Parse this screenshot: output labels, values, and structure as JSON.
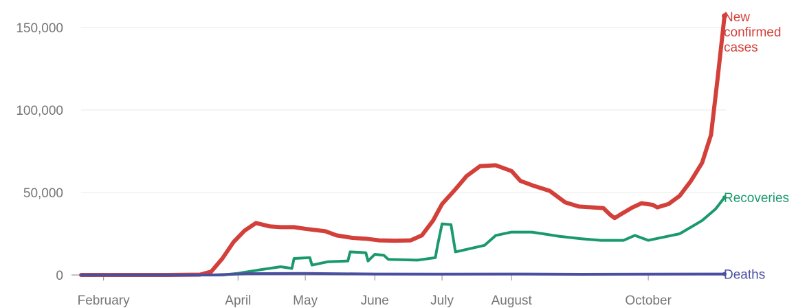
{
  "chart_data": {
    "type": "line",
    "title": "",
    "xlabel": "",
    "ylabel": "",
    "ylim": [
      0,
      160000
    ],
    "grid": true,
    "y_ticks": [
      {
        "value": 0,
        "label": "0"
      },
      {
        "value": 50000,
        "label": "50,000"
      },
      {
        "value": 100000,
        "label": "100,000"
      },
      {
        "value": 150000,
        "label": "150,000"
      }
    ],
    "x_ticks": [
      {
        "date": "2020-02-01",
        "label": "February"
      },
      {
        "date": "2020-04-01",
        "label": "April"
      },
      {
        "date": "2020-05-01",
        "label": "May"
      },
      {
        "date": "2020-06-01",
        "label": "June"
      },
      {
        "date": "2020-07-01",
        "label": "July"
      },
      {
        "date": "2020-08-01",
        "label": "August"
      },
      {
        "date": "2020-10-01",
        "label": "October"
      }
    ],
    "xlim": [
      "2020-01-22",
      "2020-11-04"
    ],
    "series": [
      {
        "name": "New confirmed cases",
        "label_lines": [
          "New",
          "confirmed",
          "cases"
        ],
        "color": "#d3403a",
        "points": [
          [
            "2020-01-22",
            0
          ],
          [
            "2020-03-01",
            0
          ],
          [
            "2020-03-15",
            200
          ],
          [
            "2020-03-20",
            2000
          ],
          [
            "2020-03-25",
            10000
          ],
          [
            "2020-03-30",
            20000
          ],
          [
            "2020-04-04",
            27000
          ],
          [
            "2020-04-09",
            31500
          ],
          [
            "2020-04-15",
            29500
          ],
          [
            "2020-04-20",
            29000
          ],
          [
            "2020-04-26",
            29000
          ],
          [
            "2020-05-01",
            28000
          ],
          [
            "2020-05-10",
            26500
          ],
          [
            "2020-05-15",
            24000
          ],
          [
            "2020-05-22",
            22500
          ],
          [
            "2020-05-28",
            22000
          ],
          [
            "2020-06-03",
            21000
          ],
          [
            "2020-06-10",
            20800
          ],
          [
            "2020-06-17",
            21000
          ],
          [
            "2020-06-22",
            24000
          ],
          [
            "2020-06-27",
            33000
          ],
          [
            "2020-07-01",
            43000
          ],
          [
            "2020-07-07",
            52000
          ],
          [
            "2020-07-12",
            60000
          ],
          [
            "2020-07-18",
            66000
          ],
          [
            "2020-07-25",
            66500
          ],
          [
            "2020-08-01",
            63000
          ],
          [
            "2020-08-05",
            57000
          ],
          [
            "2020-08-11",
            54000
          ],
          [
            "2020-08-18",
            51000
          ],
          [
            "2020-08-25",
            44000
          ],
          [
            "2020-08-31",
            41500
          ],
          [
            "2020-09-06",
            41000
          ],
          [
            "2020-09-11",
            40500
          ],
          [
            "2020-09-14",
            36500
          ],
          [
            "2020-09-16",
            34500
          ],
          [
            "2020-09-19",
            37000
          ],
          [
            "2020-09-24",
            41000
          ],
          [
            "2020-09-28",
            43500
          ],
          [
            "2020-10-03",
            42500
          ],
          [
            "2020-10-05",
            41000
          ],
          [
            "2020-10-10",
            43000
          ],
          [
            "2020-10-15",
            48000
          ],
          [
            "2020-10-20",
            57000
          ],
          [
            "2020-10-25",
            68000
          ],
          [
            "2020-10-29",
            85000
          ],
          [
            "2020-11-01",
            120000
          ],
          [
            "2020-11-04",
            157000
          ]
        ]
      },
      {
        "name": "Recoveries",
        "label_lines": [
          "Recoveries"
        ],
        "color": "#1a9a6c",
        "points": [
          [
            "2020-01-22",
            0
          ],
          [
            "2020-03-25",
            0
          ],
          [
            "2020-04-01",
            1000
          ],
          [
            "2020-04-10",
            3000
          ],
          [
            "2020-04-20",
            5000
          ],
          [
            "2020-04-25",
            4000
          ],
          [
            "2020-04-26",
            10000
          ],
          [
            "2020-05-03",
            10500
          ],
          [
            "2020-05-04",
            6000
          ],
          [
            "2020-05-11",
            8000
          ],
          [
            "2020-05-20",
            8500
          ],
          [
            "2020-05-21",
            14000
          ],
          [
            "2020-05-28",
            13500
          ],
          [
            "2020-05-29",
            8500
          ],
          [
            "2020-06-01",
            12500
          ],
          [
            "2020-06-05",
            12000
          ],
          [
            "2020-06-07",
            9500
          ],
          [
            "2020-06-20",
            9000
          ],
          [
            "2020-06-28",
            10500
          ],
          [
            "2020-06-29",
            18000
          ],
          [
            "2020-07-01",
            31000
          ],
          [
            "2020-07-05",
            30500
          ],
          [
            "2020-07-07",
            14000
          ],
          [
            "2020-07-20",
            18000
          ],
          [
            "2020-07-25",
            24000
          ],
          [
            "2020-08-01",
            26000
          ],
          [
            "2020-08-10",
            26000
          ],
          [
            "2020-08-15",
            25000
          ],
          [
            "2020-08-22",
            23500
          ],
          [
            "2020-09-01",
            22000
          ],
          [
            "2020-09-10",
            21000
          ],
          [
            "2020-09-20",
            21000
          ],
          [
            "2020-09-25",
            24000
          ],
          [
            "2020-10-01",
            21000
          ],
          [
            "2020-10-08",
            23000
          ],
          [
            "2020-10-15",
            25000
          ],
          [
            "2020-10-25",
            33000
          ],
          [
            "2020-10-31",
            40000
          ],
          [
            "2020-11-04",
            47000
          ]
        ]
      },
      {
        "name": "Deaths",
        "label_lines": [
          "Deaths"
        ],
        "color": "#4b4fa0",
        "points": [
          [
            "2020-01-22",
            0
          ],
          [
            "2020-03-20",
            0
          ],
          [
            "2020-04-05",
            800
          ],
          [
            "2020-05-01",
            900
          ],
          [
            "2020-06-01",
            600
          ],
          [
            "2020-07-01",
            500
          ],
          [
            "2020-08-01",
            600
          ],
          [
            "2020-09-01",
            400
          ],
          [
            "2020-10-01",
            500
          ],
          [
            "2020-11-04",
            600
          ]
        ]
      }
    ]
  }
}
